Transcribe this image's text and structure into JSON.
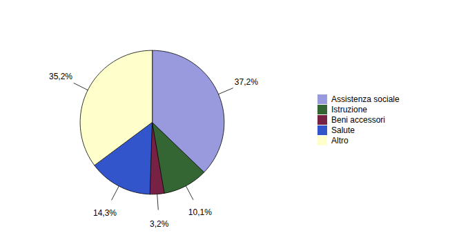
{
  "chart_data": {
    "type": "pie",
    "categories": [
      "Assistenza sociale",
      "Istruzione",
      "Beni accessori",
      "Salute",
      "Altro"
    ],
    "values": [
      37.2,
      10.1,
      3.2,
      14.3,
      35.2
    ],
    "value_labels": [
      "37,2%",
      "10,1%",
      "3,2%",
      "14,3%",
      "35,2%"
    ],
    "colors": [
      "#9999dd",
      "#336633",
      "#772244",
      "#3355cc",
      "#ffffcc"
    ],
    "data_labels": true,
    "legend": "right"
  }
}
